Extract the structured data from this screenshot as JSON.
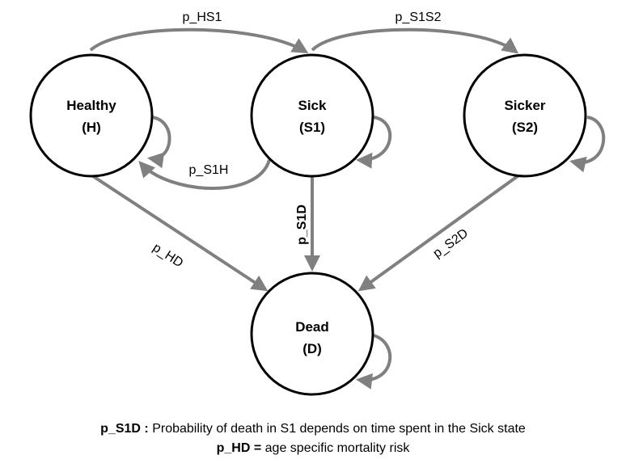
{
  "states": [
    {
      "id": "H",
      "name": "Healthy",
      "code": "(H)"
    },
    {
      "id": "S1",
      "name": "Sick",
      "code": "(S1)"
    },
    {
      "id": "S2",
      "name": "Sicker",
      "code": "(S2)"
    },
    {
      "id": "D",
      "name": "Dead",
      "code": "(D)"
    }
  ],
  "transitions": [
    {
      "id": "p_HS1",
      "from": "H",
      "to": "S1",
      "label": "p_HS1"
    },
    {
      "id": "p_S1S2",
      "from": "S1",
      "to": "S2",
      "label": "p_S1S2"
    },
    {
      "id": "p_S1H",
      "from": "S1",
      "to": "H",
      "label": "p_S1H"
    },
    {
      "id": "p_S1D",
      "from": "S1",
      "to": "D",
      "label": "p_S1D"
    },
    {
      "id": "p_HD",
      "from": "H",
      "to": "D",
      "label": "p_HD"
    },
    {
      "id": "p_S2D",
      "from": "S2",
      "to": "D",
      "label": "p_S2D"
    }
  ],
  "colors": {
    "edge": "#808080",
    "node_stroke": "#000000",
    "text": "#000000"
  },
  "footnotes": [
    {
      "term": "p_S1D :",
      "text": " Probability of death in S1 depends on time spent in the Sick state"
    },
    {
      "term": "p_HD =",
      "text": " age specific mortality risk"
    }
  ]
}
